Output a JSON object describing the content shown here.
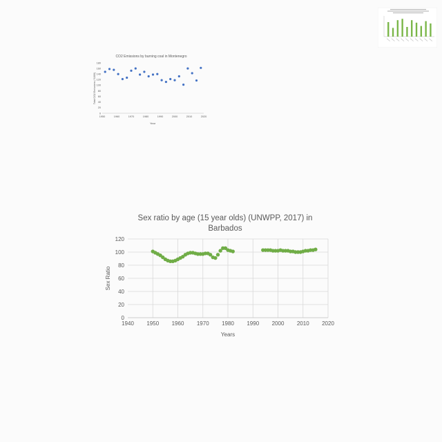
{
  "chart_data": [
    {
      "type": "bar",
      "title": "Emissions from ... burning ... (thumbnail, illegible)",
      "xlabel": "",
      "ylabel": "",
      "values": [
        0.75,
        0.45,
        0.85,
        0.92,
        0.5,
        0.85,
        0.72,
        0.55,
        0.8,
        0.68
      ],
      "color": "#7ab648"
    },
    {
      "type": "scatter",
      "title": "CO2 Emissions by burning coal in Montenegro",
      "xlabel": "Year",
      "ylabel": "Total CO2 Emissions (*1000)",
      "xlim": [
        1950,
        2020
      ],
      "ylim": [
        0,
        180
      ],
      "xticks": [
        "1950",
        "1960",
        "1970",
        "1980",
        "1990",
        "2000",
        "2010",
        "2020"
      ],
      "yticks": [
        "0",
        "20",
        "40",
        "60",
        "80",
        "100",
        "120",
        "140",
        "160",
        "180"
      ],
      "grid": false,
      "color": "#4472c4",
      "x": [
        1952,
        1955,
        1958,
        1961,
        1964,
        1967,
        1970,
        1973,
        1976,
        1979,
        1982,
        1985,
        1988,
        1991,
        1994,
        1997,
        2000,
        2003,
        2006,
        2009,
        2012,
        2015,
        2018
      ],
      "y": [
        148,
        158,
        155,
        140,
        122,
        127,
        152,
        160,
        138,
        148,
        132,
        138,
        140,
        118,
        112,
        122,
        118,
        132,
        102,
        160,
        143,
        117,
        162
      ]
    },
    {
      "type": "scatter",
      "title": "Sex ratio by age (15 year olds) (UNWPP, 2017) in Barbados",
      "xlabel": "Years",
      "ylabel": "Sex Ratio",
      "xlim": [
        1940,
        2020
      ],
      "ylim": [
        0,
        120
      ],
      "xticks": [
        "1940",
        "1950",
        "1960",
        "1970",
        "1980",
        "1990",
        "2000",
        "2010",
        "2020"
      ],
      "yticks": [
        "0",
        "20",
        "40",
        "60",
        "80",
        "100",
        "120"
      ],
      "grid": true,
      "color": "#70ad47",
      "x": [
        1950,
        1951,
        1952,
        1953,
        1954,
        1955,
        1956,
        1957,
        1958,
        1959,
        1960,
        1961,
        1962,
        1963,
        1964,
        1965,
        1966,
        1967,
        1968,
        1969,
        1970,
        1971,
        1972,
        1973,
        1974,
        1975,
        1976,
        1977,
        1978,
        1979,
        1980,
        1981,
        1982,
        1994,
        1995,
        1996,
        1997,
        1998,
        1999,
        2000,
        2001,
        2002,
        2003,
        2004,
        2005,
        2006,
        2007,
        2008,
        2009,
        2010,
        2011,
        2012,
        2013,
        2014,
        2015
      ],
      "y": [
        101,
        99,
        97,
        95,
        92,
        89,
        87,
        86,
        86,
        87,
        89,
        91,
        93,
        96,
        98,
        99,
        99,
        98,
        97,
        97,
        97,
        98,
        98,
        96,
        92,
        91,
        96,
        102,
        106,
        106,
        103,
        102,
        101,
        103,
        103,
        103,
        103,
        102,
        102,
        102,
        103,
        102,
        102,
        102,
        101,
        101,
        100,
        100,
        100,
        101,
        102,
        102,
        103,
        103,
        104
      ]
    }
  ]
}
